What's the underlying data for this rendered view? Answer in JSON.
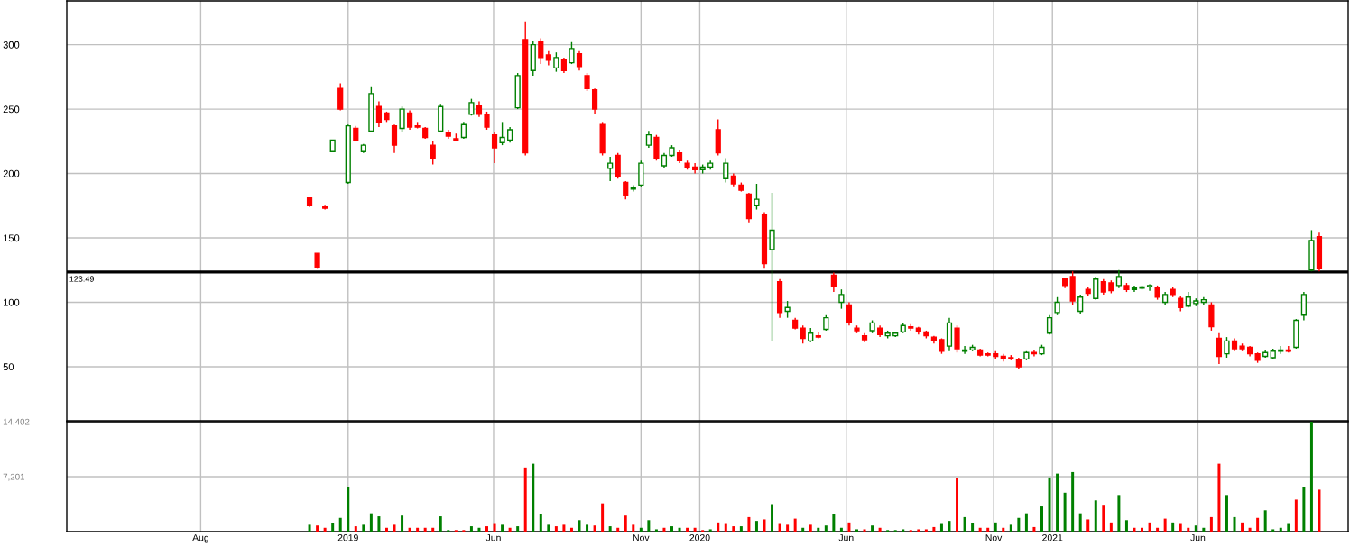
{
  "chart_data": [
    {
      "type": "candlestick",
      "x": [
        "2018-11-22",
        "2018-11-30",
        "2018-12-08",
        "2018-12-16",
        "2018-12-24",
        "2019-01-01",
        "2019-01-09",
        "2019-01-17",
        "2019-01-25",
        "2019-02-02",
        "2019-02-10",
        "2019-02-18",
        "2019-02-26",
        "2019-03-06",
        "2019-03-14",
        "2019-03-22",
        "2019-03-30",
        "2019-04-07",
        "2019-04-15",
        "2019-04-23",
        "2019-05-01",
        "2019-05-09",
        "2019-05-17",
        "2019-05-25",
        "2019-06-02",
        "2019-06-10",
        "2019-06-18",
        "2019-06-26",
        "2019-07-04",
        "2019-07-12",
        "2019-07-20",
        "2019-07-28",
        "2019-08-05",
        "2019-08-13",
        "2019-08-21",
        "2019-08-29",
        "2019-09-06",
        "2019-09-14",
        "2019-09-22",
        "2019-09-30",
        "2019-10-08",
        "2019-10-16",
        "2019-10-24",
        "2019-11-01",
        "2019-11-09",
        "2019-11-17",
        "2019-11-25",
        "2019-12-03",
        "2019-12-11",
        "2019-12-19",
        "2019-12-27",
        "2020-01-04",
        "2020-01-12",
        "2020-01-20",
        "2020-01-28",
        "2020-02-05",
        "2020-02-13",
        "2020-02-21",
        "2020-02-29",
        "2020-03-08",
        "2020-03-16",
        "2020-03-24",
        "2020-04-01",
        "2020-04-09",
        "2020-04-17",
        "2020-04-25",
        "2020-05-03",
        "2020-05-11",
        "2020-05-19",
        "2020-05-27",
        "2020-06-04",
        "2020-06-12",
        "2020-06-20",
        "2020-06-28",
        "2020-07-06",
        "2020-07-14",
        "2020-07-22",
        "2020-07-30",
        "2020-08-07",
        "2020-08-15",
        "2020-08-23",
        "2020-08-31",
        "2020-09-08",
        "2020-09-16",
        "2020-09-24",
        "2020-10-02",
        "2020-10-10",
        "2020-10-18",
        "2020-10-26",
        "2020-11-03",
        "2020-11-11",
        "2020-11-19",
        "2020-11-27",
        "2020-12-05",
        "2020-12-13",
        "2020-12-21",
        "2020-12-29",
        "2021-01-06",
        "2021-01-14",
        "2021-01-22",
        "2021-01-30",
        "2021-02-07",
        "2021-02-15",
        "2021-02-23",
        "2021-03-03",
        "2021-03-11",
        "2021-03-19",
        "2021-03-27",
        "2021-04-04",
        "2021-04-12",
        "2021-04-20",
        "2021-04-28",
        "2021-05-06",
        "2021-05-14",
        "2021-05-22",
        "2021-05-30",
        "2021-06-07",
        "2021-06-15",
        "2021-06-23",
        "2021-07-01",
        "2021-07-09",
        "2021-07-17",
        "2021-07-25",
        "2021-08-02",
        "2021-08-10",
        "2021-08-18",
        "2021-08-26",
        "2021-09-03",
        "2021-09-11",
        "2021-09-19",
        "2021-09-27",
        "2021-10-05"
      ],
      "ohlc": [
        [
          181,
          181,
          174,
          175
        ],
        [
          138,
          138,
          126,
          127
        ],
        [
          174,
          175,
          172,
          173
        ],
        [
          217,
          226,
          217,
          226
        ],
        [
          266,
          270,
          249,
          250
        ],
        [
          193,
          238,
          192,
          237
        ],
        [
          235,
          237,
          225,
          226
        ],
        [
          217,
          223,
          216,
          222
        ],
        [
          233,
          267,
          232,
          262
        ],
        [
          252,
          256,
          236,
          240
        ],
        [
          247,
          248,
          240,
          242
        ],
        [
          237,
          238,
          216,
          222
        ],
        [
          235,
          252,
          232,
          250
        ],
        [
          247,
          249,
          234,
          236
        ],
        [
          237,
          240,
          235,
          236
        ],
        [
          235,
          236,
          227,
          228
        ],
        [
          222,
          225,
          207,
          212
        ],
        [
          233,
          254,
          232,
          252
        ],
        [
          232,
          234,
          227,
          229
        ],
        [
          227,
          231,
          225,
          226
        ],
        [
          228,
          240,
          227,
          238
        ],
        [
          246,
          258,
          245,
          255
        ],
        [
          253,
          256,
          244,
          246
        ],
        [
          246,
          248,
          234,
          236
        ],
        [
          230,
          232,
          208,
          220
        ],
        [
          224,
          240,
          222,
          228
        ],
        [
          226,
          236,
          224,
          234
        ],
        [
          251,
          278,
          250,
          276
        ],
        [
          304,
          318,
          214,
          216
        ],
        [
          280,
          303,
          276,
          300
        ],
        [
          302,
          305,
          285,
          290
        ],
        [
          292,
          295,
          284,
          288
        ],
        [
          282,
          294,
          279,
          290
        ],
        [
          288,
          290,
          278,
          280
        ],
        [
          286,
          302,
          285,
          297
        ],
        [
          293,
          295,
          280,
          283
        ],
        [
          276,
          278,
          264,
          266
        ],
        [
          265,
          266,
          246,
          250
        ],
        [
          238,
          240,
          214,
          216
        ],
        [
          204,
          213,
          194,
          208
        ],
        [
          214,
          216,
          196,
          198
        ],
        [
          193,
          194,
          180,
          183
        ],
        [
          188,
          191,
          186,
          189
        ],
        [
          191,
          210,
          190,
          208
        ],
        [
          222,
          233,
          220,
          230
        ],
        [
          228,
          230,
          210,
          212
        ],
        [
          206,
          216,
          204,
          214
        ],
        [
          214,
          222,
          213,
          220
        ],
        [
          216,
          218,
          208,
          210
        ],
        [
          208,
          210,
          203,
          205
        ],
        [
          205,
          208,
          200,
          203
        ],
        [
          203,
          207,
          200,
          205
        ],
        [
          205,
          210,
          203,
          208
        ],
        [
          234,
          242,
          214,
          216
        ],
        [
          196,
          212,
          193,
          208
        ],
        [
          198,
          200,
          190,
          192
        ],
        [
          191,
          193,
          186,
          187
        ],
        [
          184,
          185,
          162,
          165
        ],
        [
          175,
          192,
          172,
          180
        ],
        [
          168,
          170,
          126,
          130
        ],
        [
          141,
          185,
          70,
          156
        ],
        [
          116,
          118,
          88,
          92
        ],
        [
          93,
          101,
          88,
          96
        ],
        [
          86,
          88,
          79,
          80
        ],
        [
          80,
          82,
          68,
          72
        ],
        [
          70,
          80,
          69,
          76
        ],
        [
          74,
          77,
          72,
          73
        ],
        [
          79,
          90,
          78,
          88
        ],
        [
          121,
          123,
          108,
          112
        ],
        [
          100,
          110,
          95,
          106
        ],
        [
          98,
          100,
          82,
          84
        ],
        [
          80,
          82,
          76,
          78
        ],
        [
          74,
          76,
          69,
          71
        ],
        [
          78,
          86,
          76,
          84
        ],
        [
          80,
          82,
          73,
          75
        ],
        [
          74,
          78,
          72,
          76
        ],
        [
          74,
          77,
          73,
          76
        ],
        [
          77,
          84,
          76,
          82
        ],
        [
          81,
          83,
          78,
          80
        ],
        [
          80,
          81,
          75,
          77
        ],
        [
          77,
          78,
          72,
          74
        ],
        [
          73,
          74,
          68,
          70
        ],
        [
          71,
          72,
          60,
          62
        ],
        [
          66,
          88,
          62,
          84
        ],
        [
          80,
          82,
          61,
          64
        ],
        [
          62,
          66,
          60,
          63
        ],
        [
          63,
          67,
          62,
          65
        ],
        [
          63,
          64,
          58,
          59
        ],
        [
          60,
          61,
          58,
          59
        ],
        [
          60,
          62,
          56,
          58
        ],
        [
          58,
          60,
          54,
          56
        ],
        [
          57,
          59,
          55,
          56
        ],
        [
          55,
          57,
          48,
          50
        ],
        [
          56,
          62,
          55,
          61
        ],
        [
          61,
          63,
          58,
          60
        ],
        [
          60,
          67,
          59,
          65
        ],
        [
          76,
          90,
          75,
          88
        ],
        [
          92,
          104,
          90,
          100
        ],
        [
          118,
          119,
          111,
          113
        ],
        [
          120,
          124,
          98,
          101
        ],
        [
          93,
          106,
          91,
          104
        ],
        [
          110,
          112,
          105,
          107
        ],
        [
          103,
          120,
          102,
          118
        ],
        [
          116,
          118,
          106,
          108
        ],
        [
          115,
          117,
          107,
          109
        ],
        [
          113,
          125,
          111,
          120
        ],
        [
          113,
          115,
          108,
          110
        ],
        [
          110,
          113,
          108,
          111
        ],
        [
          111,
          113,
          110,
          112
        ],
        [
          112,
          114,
          109,
          113
        ],
        [
          111,
          113,
          102,
          104
        ],
        [
          100,
          108,
          98,
          106
        ],
        [
          110,
          112,
          104,
          106
        ],
        [
          103,
          105,
          93,
          96
        ],
        [
          97,
          108,
          96,
          104
        ],
        [
          99,
          103,
          97,
          101
        ],
        [
          100,
          104,
          98,
          102
        ],
        [
          98,
          100,
          78,
          81
        ],
        [
          72,
          76,
          52,
          58
        ],
        [
          60,
          73,
          57,
          70
        ],
        [
          70,
          72,
          62,
          64
        ],
        [
          66,
          68,
          62,
          64
        ],
        [
          65,
          66,
          58,
          60
        ],
        [
          60,
          61,
          53,
          55
        ],
        [
          58,
          63,
          57,
          61
        ],
        [
          57,
          64,
          56,
          62
        ],
        [
          62,
          66,
          60,
          63
        ],
        [
          63,
          66,
          61,
          62
        ],
        [
          65,
          87,
          64,
          86
        ],
        [
          90,
          108,
          86,
          106
        ],
        [
          125,
          156,
          124,
          148
        ],
        [
          151,
          154,
          124,
          126
        ]
      ],
      "colors": [
        "#ff0000",
        "#ff0000",
        "#ff0000",
        "#008000",
        "#ff0000",
        "#008000",
        "#ff0000",
        "#008000",
        "#008000",
        "#ff0000",
        "#ff0000",
        "#ff0000",
        "#008000",
        "#ff0000",
        "#ff0000",
        "#ff0000",
        "#ff0000",
        "#008000",
        "#ff0000",
        "#ff0000",
        "#008000",
        "#008000",
        "#ff0000",
        "#ff0000",
        "#ff0000",
        "#008000",
        "#008000",
        "#008000",
        "#ff0000",
        "#008000",
        "#ff0000",
        "#ff0000",
        "#008000",
        "#ff0000",
        "#008000",
        "#ff0000",
        "#ff0000",
        "#ff0000",
        "#ff0000",
        "#008000",
        "#ff0000",
        "#ff0000",
        "#008000",
        "#008000",
        "#008000",
        "#ff0000",
        "#008000",
        "#008000",
        "#ff0000",
        "#ff0000",
        "#ff0000",
        "#008000",
        "#008000",
        "#ff0000",
        "#008000",
        "#ff0000",
        "#ff0000",
        "#ff0000",
        "#008000",
        "#ff0000",
        "#008000",
        "#ff0000",
        "#008000",
        "#ff0000",
        "#ff0000",
        "#008000",
        "#ff0000",
        "#008000",
        "#ff0000",
        "#008000",
        "#ff0000",
        "#ff0000",
        "#ff0000",
        "#008000",
        "#ff0000",
        "#008000",
        "#008000",
        "#008000",
        "#ff0000",
        "#ff0000",
        "#ff0000",
        "#ff0000",
        "#ff0000",
        "#008000",
        "#ff0000",
        "#008000",
        "#008000",
        "#ff0000",
        "#ff0000",
        "#ff0000",
        "#ff0000",
        "#ff0000",
        "#ff0000",
        "#008000",
        "#ff0000",
        "#008000",
        "#008000",
        "#008000",
        "#ff0000",
        "#ff0000",
        "#008000",
        "#ff0000",
        "#008000",
        "#ff0000",
        "#ff0000",
        "#008000",
        "#ff0000",
        "#008000",
        "#008000",
        "#008000",
        "#ff0000",
        "#008000",
        "#ff0000",
        "#ff0000",
        "#008000",
        "#008000",
        "#008000",
        "#ff0000",
        "#ff0000",
        "#008000",
        "#ff0000",
        "#ff0000",
        "#ff0000",
        "#ff0000",
        "#008000",
        "#008000",
        "#008000",
        "#ff0000",
        "#008000",
        "#008000",
        "#008000",
        "#ff0000"
      ],
      "xlim": [
        "2018-03-15",
        "2021-11-04"
      ],
      "xticks": [
        {
          "value": "2018-08-01",
          "label": null
        },
        {
          "value": "2019-01-01",
          "label": null
        },
        {
          "value": "2019-06-01",
          "label": null
        },
        {
          "value": "2019-11-01",
          "label": null
        },
        {
          "value": "2020-01-01",
          "label": null
        },
        {
          "value": "2020-06-01",
          "label": null
        },
        {
          "value": "2020-11-01",
          "label": null
        },
        {
          "value": "2021-01-01",
          "label": null
        },
        {
          "value": "2021-06-01",
          "label": null
        }
      ],
      "ylim": [
        8,
        334
      ],
      "yticks": [
        50,
        100,
        150,
        200,
        250,
        300
      ],
      "tick_labels": "y",
      "grid": true,
      "ref_lines": [
        {
          "axis": "y",
          "value": 123.49,
          "label": "123.49",
          "color": "#000000"
        }
      ]
    },
    {
      "type": "bar",
      "x": [
        "2018-11-22",
        "2018-11-30",
        "2018-12-08",
        "2018-12-16",
        "2018-12-24",
        "2019-01-01",
        "2019-01-09",
        "2019-01-17",
        "2019-01-25",
        "2019-02-02",
        "2019-02-10",
        "2019-02-18",
        "2019-02-26",
        "2019-03-06",
        "2019-03-14",
        "2019-03-22",
        "2019-03-30",
        "2019-04-07",
        "2019-04-15",
        "2019-04-23",
        "2019-05-01",
        "2019-05-09",
        "2019-05-17",
        "2019-05-25",
        "2019-06-02",
        "2019-06-10",
        "2019-06-18",
        "2019-06-26",
        "2019-07-04",
        "2019-07-12",
        "2019-07-20",
        "2019-07-28",
        "2019-08-05",
        "2019-08-13",
        "2019-08-21",
        "2019-08-29",
        "2019-09-06",
        "2019-09-14",
        "2019-09-22",
        "2019-09-30",
        "2019-10-08",
        "2019-10-16",
        "2019-10-24",
        "2019-11-01",
        "2019-11-09",
        "2019-11-17",
        "2019-11-25",
        "2019-12-03",
        "2019-12-11",
        "2019-12-19",
        "2019-12-27",
        "2020-01-04",
        "2020-01-12",
        "2020-01-20",
        "2020-01-28",
        "2020-02-05",
        "2020-02-13",
        "2020-02-21",
        "2020-02-29",
        "2020-03-08",
        "2020-03-16",
        "2020-03-24",
        "2020-04-01",
        "2020-04-09",
        "2020-04-17",
        "2020-04-25",
        "2020-05-03",
        "2020-05-11",
        "2020-05-19",
        "2020-05-27",
        "2020-06-04",
        "2020-06-12",
        "2020-06-20",
        "2020-06-28",
        "2020-07-06",
        "2020-07-14",
        "2020-07-22",
        "2020-07-30",
        "2020-08-07",
        "2020-08-15",
        "2020-08-23",
        "2020-08-31",
        "2020-09-08",
        "2020-09-16",
        "2020-09-24",
        "2020-10-02",
        "2020-10-10",
        "2020-10-18",
        "2020-10-26",
        "2020-11-03",
        "2020-11-11",
        "2020-11-19",
        "2020-11-27",
        "2020-12-05",
        "2020-12-13",
        "2020-12-21",
        "2020-12-29",
        "2021-01-06",
        "2021-01-14",
        "2021-01-22",
        "2021-01-30",
        "2021-02-07",
        "2021-02-15",
        "2021-02-23",
        "2021-03-03",
        "2021-03-11",
        "2021-03-19",
        "2021-03-27",
        "2021-04-04",
        "2021-04-12",
        "2021-04-20",
        "2021-04-28",
        "2021-05-06",
        "2021-05-14",
        "2021-05-22",
        "2021-05-30",
        "2021-06-07",
        "2021-06-15",
        "2021-06-23",
        "2021-07-01",
        "2021-07-09",
        "2021-07-17",
        "2021-07-25",
        "2021-08-02",
        "2021-08-10",
        "2021-08-18",
        "2021-08-26",
        "2021-09-03",
        "2021-09-11",
        "2021-09-19",
        "2021-09-27",
        "2021-10-05"
      ],
      "values": [
        900,
        800,
        500,
        1100,
        1800,
        5900,
        700,
        900,
        2400,
        2000,
        500,
        900,
        2100,
        500,
        500,
        500,
        500,
        2000,
        200,
        200,
        200,
        700,
        500,
        700,
        1000,
        900,
        500,
        700,
        8400,
        8900,
        2300,
        900,
        700,
        900,
        500,
        1500,
        900,
        800,
        3700,
        700,
        500,
        2100,
        900,
        500,
        1500,
        300,
        500,
        700,
        500,
        500,
        500,
        200,
        300,
        1200,
        1000,
        700,
        700,
        1900,
        1400,
        1600,
        3600,
        1000,
        900,
        1700,
        500,
        900,
        500,
        800,
        2300,
        500,
        1200,
        300,
        300,
        800,
        500,
        200,
        200,
        300,
        200,
        300,
        300,
        600,
        1000,
        1400,
        7000,
        1900,
        1100,
        500,
        500,
        1200,
        500,
        900,
        1800,
        2400,
        600,
        3300,
        7100,
        7600,
        5100,
        7800,
        2400,
        1600,
        4100,
        3400,
        1200,
        4800,
        1500,
        500,
        500,
        1200,
        500,
        1700,
        1200,
        1000,
        500,
        800,
        500,
        1900,
        8900,
        4800,
        1900,
        1200,
        500,
        1800,
        2800,
        300,
        500,
        1000,
        4200,
        5900,
        14400,
        5500
      ],
      "colors": [
        "#008000",
        "#ff0000",
        "#ff0000",
        "#008000",
        "#008000",
        "#008000",
        "#ff0000",
        "#008000",
        "#008000",
        "#008000",
        "#ff0000",
        "#ff0000",
        "#008000",
        "#ff0000",
        "#ff0000",
        "#ff0000",
        "#ff0000",
        "#008000",
        "#008000",
        "#ff0000",
        "#ff0000",
        "#008000",
        "#008000",
        "#ff0000",
        "#ff0000",
        "#008000",
        "#ff0000",
        "#008000",
        "#ff0000",
        "#008000",
        "#008000",
        "#008000",
        "#ff0000",
        "#ff0000",
        "#ff0000",
        "#008000",
        "#008000",
        "#ff0000",
        "#ff0000",
        "#008000",
        "#ff0000",
        "#ff0000",
        "#ff0000",
        "#008000",
        "#008000",
        "#008000",
        "#ff0000",
        "#008000",
        "#008000",
        "#ff0000",
        "#ff0000",
        "#ff0000",
        "#008000",
        "#ff0000",
        "#ff0000",
        "#ff0000",
        "#008000",
        "#ff0000",
        "#008000",
        "#ff0000",
        "#008000",
        "#ff0000",
        "#ff0000",
        "#ff0000",
        "#008000",
        "#ff0000",
        "#008000",
        "#008000",
        "#008000",
        "#008000",
        "#ff0000",
        "#008000",
        "#ff0000",
        "#008000",
        "#ff0000",
        "#008000",
        "#008000",
        "#008000",
        "#ff0000",
        "#ff0000",
        "#ff0000",
        "#ff0000",
        "#008000",
        "#008000",
        "#ff0000",
        "#008000",
        "#008000",
        "#ff0000",
        "#ff0000",
        "#008000",
        "#ff0000",
        "#008000",
        "#008000",
        "#008000",
        "#ff0000",
        "#008000",
        "#008000",
        "#008000",
        "#008000",
        "#008000",
        "#008000",
        "#ff0000",
        "#008000",
        "#ff0000",
        "#ff0000",
        "#008000",
        "#008000",
        "#ff0000",
        "#ff0000",
        "#ff0000",
        "#ff0000",
        "#ff0000",
        "#008000",
        "#ff0000",
        "#ff0000",
        "#008000",
        "#008000",
        "#ff0000",
        "#ff0000",
        "#008000",
        "#008000",
        "#ff0000",
        "#ff0000",
        "#ff0000",
        "#008000",
        "#008000",
        "#008000",
        "#008000",
        "#ff0000",
        "#008000",
        "#008000",
        "#ff0000"
      ],
      "xlim": [
        "2018-03-15",
        "2021-11-04"
      ],
      "xticks": [
        {
          "value": "2018-08-01",
          "label": "Aug"
        },
        {
          "value": "2019-01-01",
          "label": "2019"
        },
        {
          "value": "2019-06-01",
          "label": "Jun"
        },
        {
          "value": "2019-11-01",
          "label": "Nov"
        },
        {
          "value": "2020-01-01",
          "label": "2020"
        },
        {
          "value": "2020-06-01",
          "label": "Jun"
        },
        {
          "value": "2020-11-01",
          "label": "Nov"
        },
        {
          "value": "2021-01-01",
          "label": "2021"
        },
        {
          "value": "2021-06-01",
          "label": "Jun"
        }
      ],
      "ylim": [
        0,
        14402
      ],
      "yticks": [
        {
          "value": 7201,
          "label": "7,201"
        },
        {
          "value": 14402,
          "label": "14,402"
        }
      ],
      "grid": true
    }
  ]
}
